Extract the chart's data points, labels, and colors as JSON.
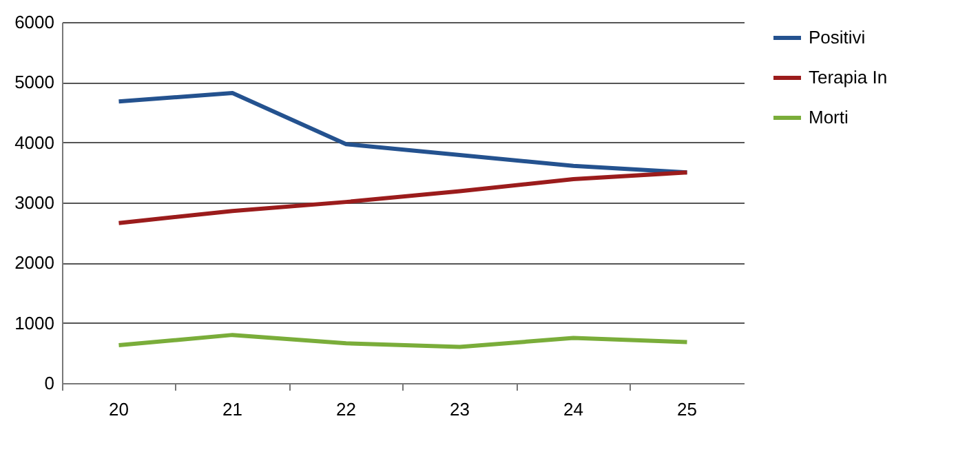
{
  "chart_data": {
    "type": "line",
    "categories": [
      "20",
      "21",
      "22",
      "23",
      "24",
      "25"
    ],
    "series": [
      {
        "name": "Positivi",
        "color": "#24528f",
        "values": [
          4680,
          4820,
          3970,
          3790,
          3610,
          3500
        ]
      },
      {
        "name": "Terapia In",
        "color": "#9b1c1c",
        "values": [
          2660,
          2860,
          3010,
          3190,
          3390,
          3500
        ]
      },
      {
        "name": "Morti",
        "color": "#7aad3a",
        "values": [
          630,
          800,
          660,
          600,
          750,
          680
        ]
      }
    ],
    "ylim": [
      0,
      6000
    ],
    "yticks": [
      0,
      1000,
      2000,
      3000,
      4000,
      5000,
      6000
    ],
    "grid": "y",
    "legend": "right",
    "marker": "none",
    "line_style": "solid"
  }
}
